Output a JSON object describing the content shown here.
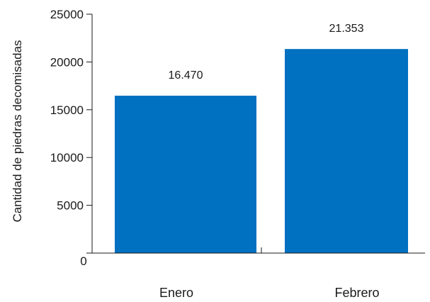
{
  "chart_data": {
    "type": "bar",
    "categories": [
      "Enero",
      "Febrero"
    ],
    "values": [
      16470,
      21353
    ],
    "value_labels": [
      "16.470",
      "21.353"
    ],
    "ylabel": "Cantidad de piedras decomisadas",
    "xlabel": "",
    "ylim": [
      0,
      25000
    ],
    "yticks": [
      0,
      5000,
      10000,
      15000,
      20000,
      25000
    ],
    "grid": false,
    "legend": "none",
    "bar_color": "#0070C0"
  }
}
